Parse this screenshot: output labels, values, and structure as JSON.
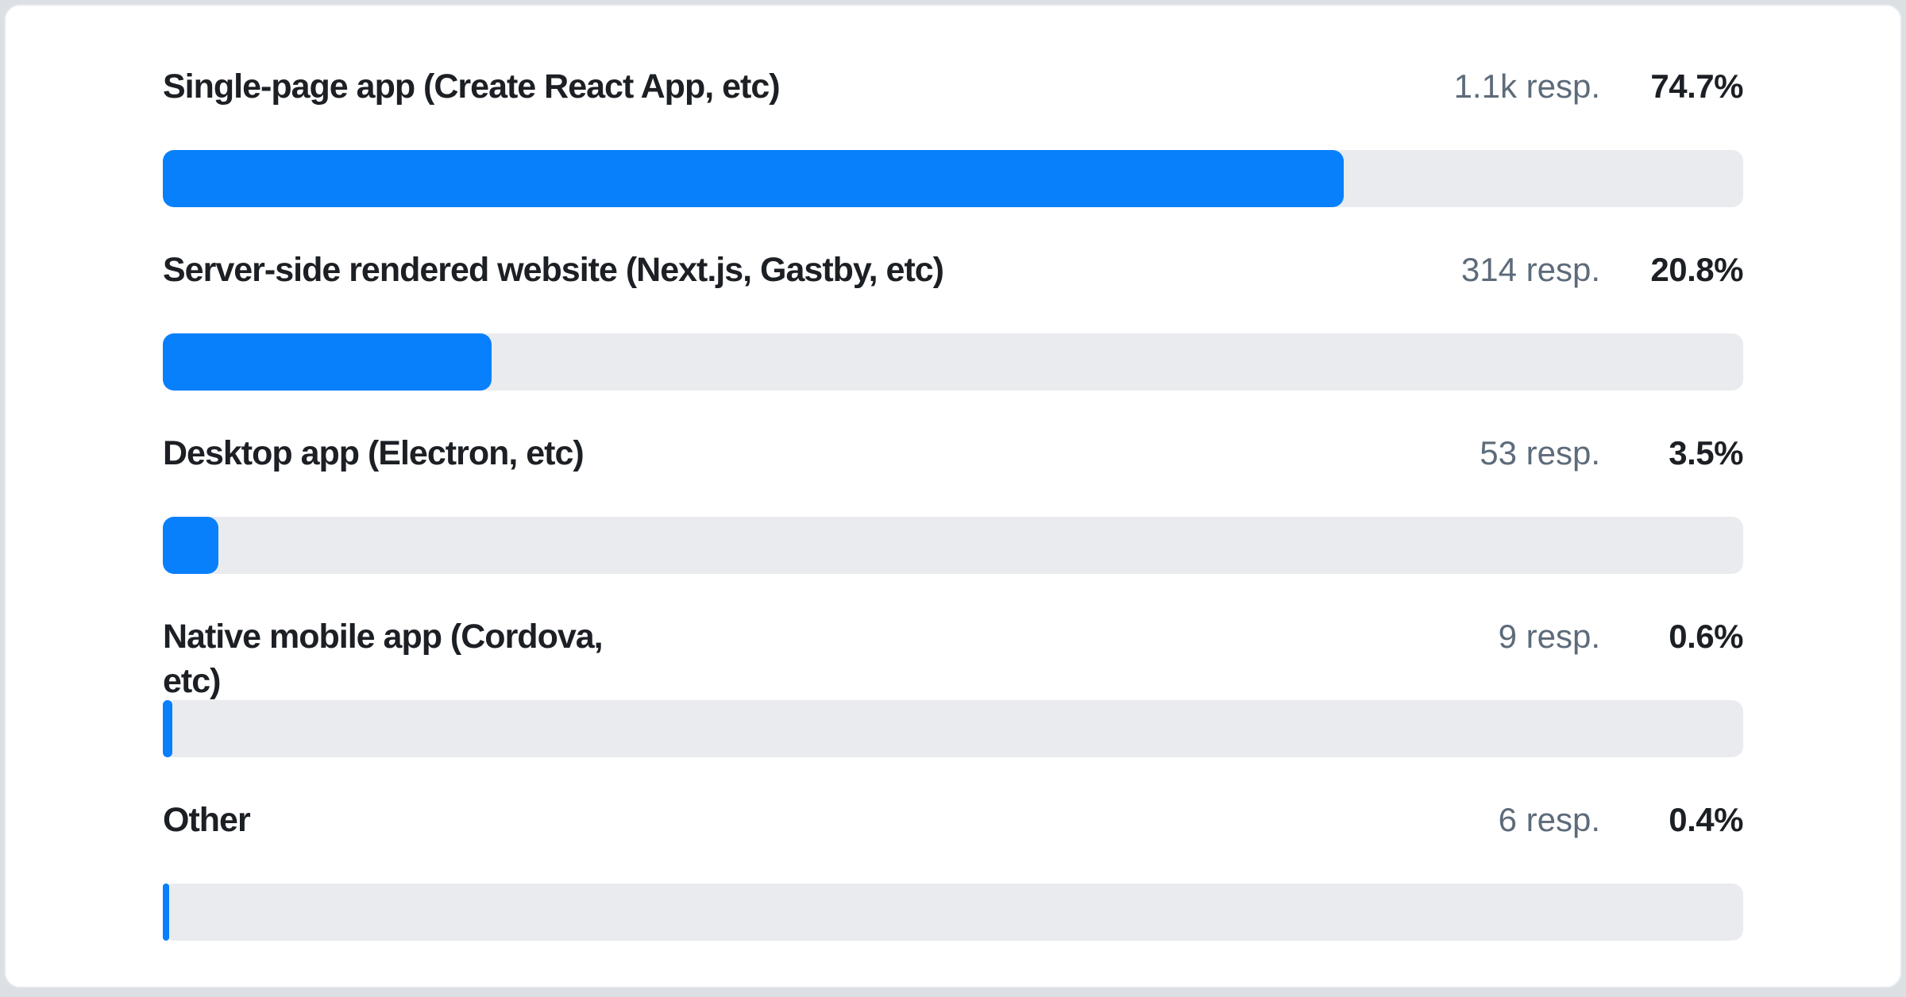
{
  "colors": {
    "accent": "#0980fb",
    "track": "#e9ebee",
    "label_text": "#1c2025",
    "muted_text": "#5d6b7a",
    "card_bg": "#ffffff",
    "card_border": "#e5e8ec",
    "page_bg": "#dcdfe3"
  },
  "chart_data": {
    "type": "bar",
    "orientation": "horizontal",
    "title": "",
    "categories": [
      "Single-page app (Create React App, etc)",
      "Server-side rendered website (Next.js, Gastby, etc)",
      "Desktop app (Electron, etc)",
      "Native mobile app (Cordova, etc)",
      "Other"
    ],
    "values": [
      74.7,
      20.8,
      3.5,
      0.6,
      0.4
    ],
    "unit": "%",
    "xlim": [
      0,
      100
    ],
    "response_counts": [
      "1.1k",
      "314",
      "53",
      "9",
      "6"
    ],
    "grid": false,
    "legend": false
  },
  "rows": [
    {
      "label": "Single-page app (Create React App, etc)",
      "responses": "1.1k resp.",
      "percent": "74.7%"
    },
    {
      "label": "Server-side rendered website (Next.js, Gastby, etc)",
      "responses": "314 resp.",
      "percent": "20.8%"
    },
    {
      "label": "Desktop app (Electron, etc)",
      "responses": "53 resp.",
      "percent": "3.5%"
    },
    {
      "label": "Native mobile app (Cordova, etc)",
      "responses": "9 resp.",
      "percent": "0.6%"
    },
    {
      "label": "Other",
      "responses": "6 resp.",
      "percent": "0.4%"
    }
  ]
}
